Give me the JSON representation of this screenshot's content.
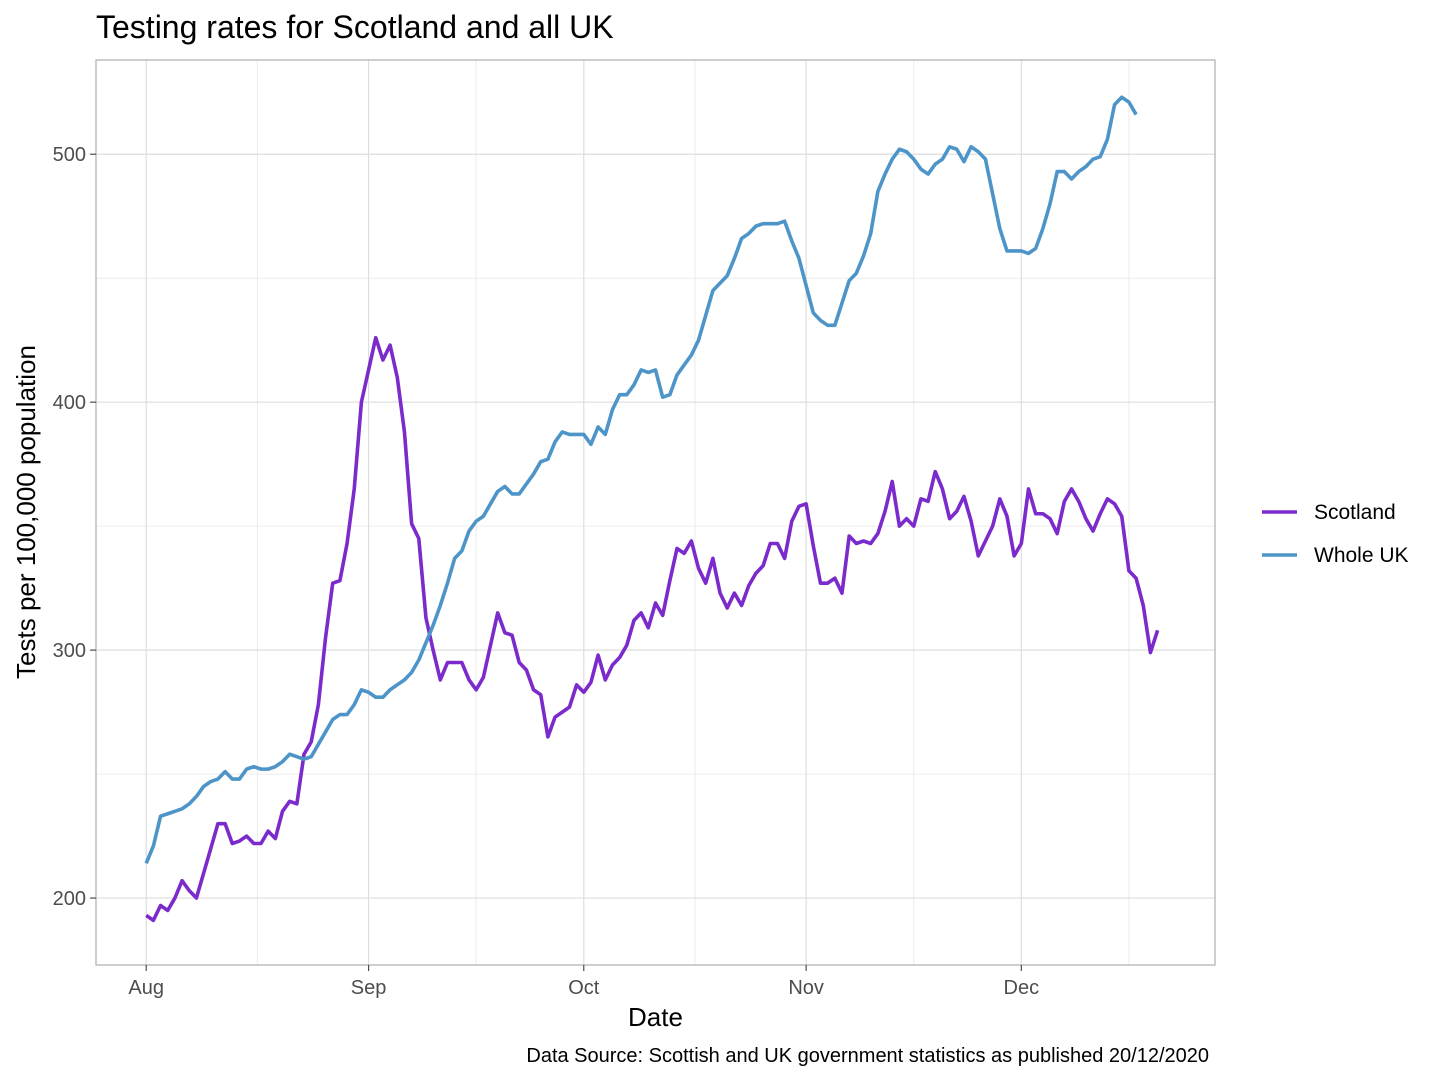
{
  "chart_data": {
    "type": "line",
    "title": "Testing rates for Scotland and all UK",
    "xlabel": "Date",
    "ylabel": "Tests per 100,000 population",
    "caption": "Data Source: Scottish and UK government statistics as published 20/12/2020",
    "x_ticks": [
      {
        "label": "Aug",
        "date": "2020-08-01"
      },
      {
        "label": "Sep",
        "date": "2020-09-01"
      },
      {
        "label": "Oct",
        "date": "2020-10-01"
      },
      {
        "label": "Nov",
        "date": "2020-11-01"
      },
      {
        "label": "Dec",
        "date": "2020-12-01"
      }
    ],
    "y_ticks": [
      200,
      300,
      400,
      500
    ],
    "xlim": [
      "2020-07-25",
      "2020-12-28"
    ],
    "ylim": [
      173,
      538
    ],
    "grid": true,
    "legend_position": "right",
    "series": [
      {
        "name": "Scotland",
        "color": "#7B2ACB",
        "points": [
          [
            "2020-08-01",
            193
          ],
          [
            "2020-08-02",
            191
          ],
          [
            "2020-08-03",
            197
          ],
          [
            "2020-08-04",
            195
          ],
          [
            "2020-08-05",
            200
          ],
          [
            "2020-08-06",
            207
          ],
          [
            "2020-08-07",
            203
          ],
          [
            "2020-08-08",
            200
          ],
          [
            "2020-08-09",
            210
          ],
          [
            "2020-08-10",
            220
          ],
          [
            "2020-08-11",
            230
          ],
          [
            "2020-08-12",
            230
          ],
          [
            "2020-08-13",
            222
          ],
          [
            "2020-08-14",
            223
          ],
          [
            "2020-08-15",
            225
          ],
          [
            "2020-08-16",
            222
          ],
          [
            "2020-08-17",
            222
          ],
          [
            "2020-08-18",
            227
          ],
          [
            "2020-08-19",
            224
          ],
          [
            "2020-08-20",
            235
          ],
          [
            "2020-08-21",
            239
          ],
          [
            "2020-08-22",
            238
          ],
          [
            "2020-08-23",
            258
          ],
          [
            "2020-08-24",
            263
          ],
          [
            "2020-08-25",
            278
          ],
          [
            "2020-08-26",
            305
          ],
          [
            "2020-08-27",
            327
          ],
          [
            "2020-08-28",
            328
          ],
          [
            "2020-08-29",
            343
          ],
          [
            "2020-08-30",
            365
          ],
          [
            "2020-08-31",
            400
          ],
          [
            "2020-09-01",
            413
          ],
          [
            "2020-09-02",
            426
          ],
          [
            "2020-09-03",
            417
          ],
          [
            "2020-09-04",
            423
          ],
          [
            "2020-09-05",
            410
          ],
          [
            "2020-09-06",
            388
          ],
          [
            "2020-09-07",
            351
          ],
          [
            "2020-09-08",
            345
          ],
          [
            "2020-09-09",
            313
          ],
          [
            "2020-09-10",
            300
          ],
          [
            "2020-09-11",
            288
          ],
          [
            "2020-09-12",
            295
          ],
          [
            "2020-09-13",
            295
          ],
          [
            "2020-09-14",
            295
          ],
          [
            "2020-09-15",
            288
          ],
          [
            "2020-09-16",
            284
          ],
          [
            "2020-09-17",
            289
          ],
          [
            "2020-09-18",
            302
          ],
          [
            "2020-09-19",
            315
          ],
          [
            "2020-09-20",
            307
          ],
          [
            "2020-09-21",
            306
          ],
          [
            "2020-09-22",
            295
          ],
          [
            "2020-09-23",
            292
          ],
          [
            "2020-09-24",
            284
          ],
          [
            "2020-09-25",
            282
          ],
          [
            "2020-09-26",
            265
          ],
          [
            "2020-09-27",
            273
          ],
          [
            "2020-09-28",
            275
          ],
          [
            "2020-09-29",
            277
          ],
          [
            "2020-09-30",
            286
          ],
          [
            "2020-10-01",
            283
          ],
          [
            "2020-10-02",
            287
          ],
          [
            "2020-10-03",
            298
          ],
          [
            "2020-10-04",
            288
          ],
          [
            "2020-10-05",
            294
          ],
          [
            "2020-10-06",
            297
          ],
          [
            "2020-10-07",
            302
          ],
          [
            "2020-10-08",
            312
          ],
          [
            "2020-10-09",
            315
          ],
          [
            "2020-10-10",
            309
          ],
          [
            "2020-10-11",
            319
          ],
          [
            "2020-10-12",
            314
          ],
          [
            "2020-10-13",
            328
          ],
          [
            "2020-10-14",
            341
          ],
          [
            "2020-10-15",
            339
          ],
          [
            "2020-10-16",
            344
          ],
          [
            "2020-10-17",
            333
          ],
          [
            "2020-10-18",
            327
          ],
          [
            "2020-10-19",
            337
          ],
          [
            "2020-10-20",
            323
          ],
          [
            "2020-10-21",
            317
          ],
          [
            "2020-10-22",
            323
          ],
          [
            "2020-10-23",
            318
          ],
          [
            "2020-10-24",
            326
          ],
          [
            "2020-10-25",
            331
          ],
          [
            "2020-10-26",
            334
          ],
          [
            "2020-10-27",
            343
          ],
          [
            "2020-10-28",
            343
          ],
          [
            "2020-10-29",
            337
          ],
          [
            "2020-10-30",
            352
          ],
          [
            "2020-10-31",
            358
          ],
          [
            "2020-11-01",
            359
          ],
          [
            "2020-11-02",
            342
          ],
          [
            "2020-11-03",
            327
          ],
          [
            "2020-11-04",
            327
          ],
          [
            "2020-11-05",
            329
          ],
          [
            "2020-11-06",
            323
          ],
          [
            "2020-11-07",
            346
          ],
          [
            "2020-11-08",
            343
          ],
          [
            "2020-11-09",
            344
          ],
          [
            "2020-11-10",
            343
          ],
          [
            "2020-11-11",
            347
          ],
          [
            "2020-11-12",
            356
          ],
          [
            "2020-11-13",
            368
          ],
          [
            "2020-11-14",
            350
          ],
          [
            "2020-11-15",
            353
          ],
          [
            "2020-11-16",
            350
          ],
          [
            "2020-11-17",
            361
          ],
          [
            "2020-11-18",
            360
          ],
          [
            "2020-11-19",
            372
          ],
          [
            "2020-11-20",
            365
          ],
          [
            "2020-11-21",
            353
          ],
          [
            "2020-11-22",
            356
          ],
          [
            "2020-11-23",
            362
          ],
          [
            "2020-11-24",
            352
          ],
          [
            "2020-11-25",
            338
          ],
          [
            "2020-11-26",
            344
          ],
          [
            "2020-11-27",
            350
          ],
          [
            "2020-11-28",
            361
          ],
          [
            "2020-11-29",
            354
          ],
          [
            "2020-11-30",
            338
          ],
          [
            "2020-12-01",
            343
          ],
          [
            "2020-12-02",
            365
          ],
          [
            "2020-12-03",
            355
          ],
          [
            "2020-12-04",
            355
          ],
          [
            "2020-12-05",
            353
          ],
          [
            "2020-12-06",
            347
          ],
          [
            "2020-12-07",
            360
          ],
          [
            "2020-12-08",
            365
          ],
          [
            "2020-12-09",
            360
          ],
          [
            "2020-12-10",
            353
          ],
          [
            "2020-12-11",
            348
          ],
          [
            "2020-12-12",
            355
          ],
          [
            "2020-12-13",
            361
          ],
          [
            "2020-12-14",
            359
          ],
          [
            "2020-12-15",
            354
          ],
          [
            "2020-12-16",
            332
          ],
          [
            "2020-12-17",
            329
          ],
          [
            "2020-12-18",
            318
          ],
          [
            "2020-12-19",
            299
          ],
          [
            "2020-12-20",
            308
          ]
        ]
      },
      {
        "name": "Whole UK",
        "color": "#4D95C8",
        "points": [
          [
            "2020-08-01",
            214
          ],
          [
            "2020-08-02",
            221
          ],
          [
            "2020-08-03",
            233
          ],
          [
            "2020-08-04",
            234
          ],
          [
            "2020-08-05",
            235
          ],
          [
            "2020-08-06",
            236
          ],
          [
            "2020-08-07",
            238
          ],
          [
            "2020-08-08",
            241
          ],
          [
            "2020-08-09",
            245
          ],
          [
            "2020-08-10",
            247
          ],
          [
            "2020-08-11",
            248
          ],
          [
            "2020-08-12",
            251
          ],
          [
            "2020-08-13",
            248
          ],
          [
            "2020-08-14",
            248
          ],
          [
            "2020-08-15",
            252
          ],
          [
            "2020-08-16",
            253
          ],
          [
            "2020-08-17",
            252
          ],
          [
            "2020-08-18",
            252
          ],
          [
            "2020-08-19",
            253
          ],
          [
            "2020-08-20",
            255
          ],
          [
            "2020-08-21",
            258
          ],
          [
            "2020-08-22",
            257
          ],
          [
            "2020-08-23",
            256
          ],
          [
            "2020-08-24",
            257
          ],
          [
            "2020-08-25",
            262
          ],
          [
            "2020-08-26",
            267
          ],
          [
            "2020-08-27",
            272
          ],
          [
            "2020-08-28",
            274
          ],
          [
            "2020-08-29",
            274
          ],
          [
            "2020-08-30",
            278
          ],
          [
            "2020-08-31",
            284
          ],
          [
            "2020-09-01",
            283
          ],
          [
            "2020-09-02",
            281
          ],
          [
            "2020-09-03",
            281
          ],
          [
            "2020-09-04",
            284
          ],
          [
            "2020-09-05",
            286
          ],
          [
            "2020-09-06",
            288
          ],
          [
            "2020-09-07",
            291
          ],
          [
            "2020-09-08",
            296
          ],
          [
            "2020-09-09",
            303
          ],
          [
            "2020-09-10",
            310
          ],
          [
            "2020-09-11",
            318
          ],
          [
            "2020-09-12",
            327
          ],
          [
            "2020-09-13",
            337
          ],
          [
            "2020-09-14",
            340
          ],
          [
            "2020-09-15",
            348
          ],
          [
            "2020-09-16",
            352
          ],
          [
            "2020-09-17",
            354
          ],
          [
            "2020-09-18",
            359
          ],
          [
            "2020-09-19",
            364
          ],
          [
            "2020-09-20",
            366
          ],
          [
            "2020-09-21",
            363
          ],
          [
            "2020-09-22",
            363
          ],
          [
            "2020-09-23",
            367
          ],
          [
            "2020-09-24",
            371
          ],
          [
            "2020-09-25",
            376
          ],
          [
            "2020-09-26",
            377
          ],
          [
            "2020-09-27",
            384
          ],
          [
            "2020-09-28",
            388
          ],
          [
            "2020-09-29",
            387
          ],
          [
            "2020-09-30",
            387
          ],
          [
            "2020-10-01",
            387
          ],
          [
            "2020-10-02",
            383
          ],
          [
            "2020-10-03",
            390
          ],
          [
            "2020-10-04",
            387
          ],
          [
            "2020-10-05",
            397
          ],
          [
            "2020-10-06",
            403
          ],
          [
            "2020-10-07",
            403
          ],
          [
            "2020-10-08",
            407
          ],
          [
            "2020-10-09",
            413
          ],
          [
            "2020-10-10",
            412
          ],
          [
            "2020-10-11",
            413
          ],
          [
            "2020-10-12",
            402
          ],
          [
            "2020-10-13",
            403
          ],
          [
            "2020-10-14",
            411
          ],
          [
            "2020-10-15",
            415
          ],
          [
            "2020-10-16",
            419
          ],
          [
            "2020-10-17",
            425
          ],
          [
            "2020-10-18",
            435
          ],
          [
            "2020-10-19",
            445
          ],
          [
            "2020-10-20",
            448
          ],
          [
            "2020-10-21",
            451
          ],
          [
            "2020-10-22",
            458
          ],
          [
            "2020-10-23",
            466
          ],
          [
            "2020-10-24",
            468
          ],
          [
            "2020-10-25",
            471
          ],
          [
            "2020-10-26",
            472
          ],
          [
            "2020-10-27",
            472
          ],
          [
            "2020-10-28",
            472
          ],
          [
            "2020-10-29",
            473
          ],
          [
            "2020-10-30",
            465
          ],
          [
            "2020-10-31",
            458
          ],
          [
            "2020-11-01",
            447
          ],
          [
            "2020-11-02",
            436
          ],
          [
            "2020-11-03",
            433
          ],
          [
            "2020-11-04",
            431
          ],
          [
            "2020-11-05",
            431
          ],
          [
            "2020-11-06",
            440
          ],
          [
            "2020-11-07",
            449
          ],
          [
            "2020-11-08",
            452
          ],
          [
            "2020-11-09",
            459
          ],
          [
            "2020-11-10",
            468
          ],
          [
            "2020-11-11",
            485
          ],
          [
            "2020-11-12",
            492
          ],
          [
            "2020-11-13",
            498
          ],
          [
            "2020-11-14",
            502
          ],
          [
            "2020-11-15",
            501
          ],
          [
            "2020-11-16",
            498
          ],
          [
            "2020-11-17",
            494
          ],
          [
            "2020-11-18",
            492
          ],
          [
            "2020-11-19",
            496
          ],
          [
            "2020-11-20",
            498
          ],
          [
            "2020-11-21",
            503
          ],
          [
            "2020-11-22",
            502
          ],
          [
            "2020-11-23",
            497
          ],
          [
            "2020-11-24",
            503
          ],
          [
            "2020-11-25",
            501
          ],
          [
            "2020-11-26",
            498
          ],
          [
            "2020-11-27",
            484
          ],
          [
            "2020-11-28",
            470
          ],
          [
            "2020-11-29",
            461
          ],
          [
            "2020-11-30",
            461
          ],
          [
            "2020-12-01",
            461
          ],
          [
            "2020-12-02",
            460
          ],
          [
            "2020-12-03",
            462
          ],
          [
            "2020-12-04",
            470
          ],
          [
            "2020-12-05",
            480
          ],
          [
            "2020-12-06",
            493
          ],
          [
            "2020-12-07",
            493
          ],
          [
            "2020-12-08",
            490
          ],
          [
            "2020-12-09",
            493
          ],
          [
            "2020-12-10",
            495
          ],
          [
            "2020-12-11",
            498
          ],
          [
            "2020-12-12",
            499
          ],
          [
            "2020-12-13",
            506
          ],
          [
            "2020-12-14",
            520
          ],
          [
            "2020-12-15",
            523
          ],
          [
            "2020-12-16",
            521
          ],
          [
            "2020-12-17",
            516
          ]
        ]
      }
    ]
  }
}
